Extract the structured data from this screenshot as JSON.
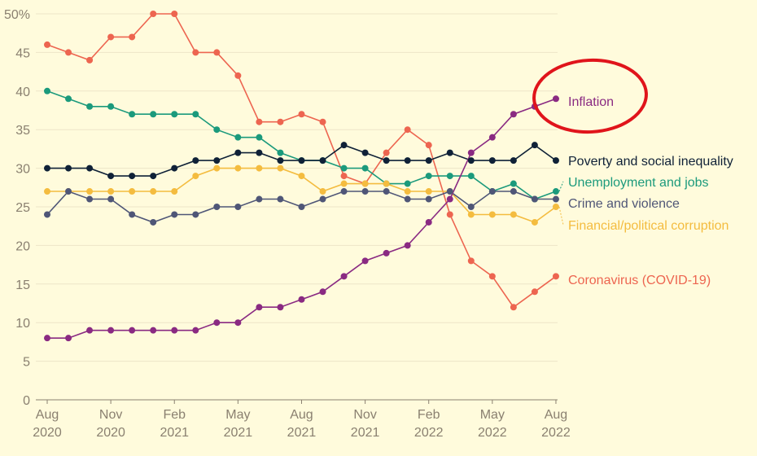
{
  "chart_data": {
    "type": "line",
    "ylim": [
      0,
      50
    ],
    "yticks": [
      "0",
      "5",
      "10",
      "15",
      "20",
      "25",
      "30",
      "35",
      "40",
      "45",
      "50%"
    ],
    "xtick_labels": [
      {
        "month": "Aug",
        "year": "2020"
      },
      {
        "month": "Nov",
        "year": "2020"
      },
      {
        "month": "Feb",
        "year": "2021"
      },
      {
        "month": "May",
        "year": "2021"
      },
      {
        "month": "Aug",
        "year": "2021"
      },
      {
        "month": "Nov",
        "year": "2021"
      },
      {
        "month": "Feb",
        "year": "2022"
      },
      {
        "month": "May",
        "year": "2022"
      },
      {
        "month": "Aug",
        "year": "2022"
      }
    ],
    "x": [
      "2020-08",
      "2020-09",
      "2020-10",
      "2020-11",
      "2020-12",
      "2021-01",
      "2021-02",
      "2021-03",
      "2021-04",
      "2021-05",
      "2021-06",
      "2021-07",
      "2021-08",
      "2021-09",
      "2021-10",
      "2021-11",
      "2021-12",
      "2022-01",
      "2022-02",
      "2022-03",
      "2022-04",
      "2022-05",
      "2022-06",
      "2022-07",
      "2022-08"
    ],
    "series": [
      {
        "name": "Coronavirus (COVID-19)",
        "color": "#ed6550",
        "values": [
          46,
          45,
          44,
          47,
          47,
          50,
          50,
          45,
          45,
          42,
          36,
          36,
          37,
          36,
          29,
          28,
          32,
          35,
          33,
          24,
          18,
          16,
          12,
          14,
          16
        ]
      },
      {
        "name": "Unemployment and jobs",
        "color": "#1b9a7c",
        "values": [
          40,
          39,
          38,
          38,
          37,
          37,
          37,
          37,
          35,
          34,
          34,
          32,
          31,
          31,
          30,
          30,
          28,
          28,
          29,
          29,
          29,
          27,
          28,
          26,
          27
        ]
      },
      {
        "name": "Poverty and social inequality",
        "color": "#0f2137",
        "values": [
          30,
          30,
          30,
          29,
          29,
          29,
          30,
          31,
          31,
          32,
          32,
          31,
          31,
          31,
          33,
          32,
          31,
          31,
          31,
          32,
          31,
          31,
          31,
          33,
          31
        ]
      },
      {
        "name": "Financial/political corruption",
        "color": "#f4bc3f",
        "values": [
          27,
          27,
          27,
          27,
          27,
          27,
          27,
          29,
          30,
          30,
          30,
          30,
          29,
          27,
          28,
          28,
          28,
          27,
          27,
          27,
          24,
          24,
          24,
          23,
          25
        ]
      },
      {
        "name": "Crime and violence",
        "color": "#4f5677",
        "values": [
          24,
          27,
          26,
          26,
          24,
          23,
          24,
          24,
          25,
          25,
          26,
          26,
          25,
          26,
          27,
          27,
          27,
          26,
          26,
          27,
          25,
          27,
          27,
          26,
          26
        ]
      },
      {
        "name": "Inflation",
        "color": "#8a2a82",
        "values": [
          8,
          8,
          9,
          9,
          9,
          9,
          9,
          9,
          10,
          10,
          12,
          12,
          13,
          14,
          16,
          18,
          19,
          20,
          23,
          26,
          32,
          34,
          37,
          38,
          39
        ]
      }
    ],
    "annotation": {
      "type": "circle",
      "target": "Inflation",
      "color": "#e0141b"
    }
  }
}
